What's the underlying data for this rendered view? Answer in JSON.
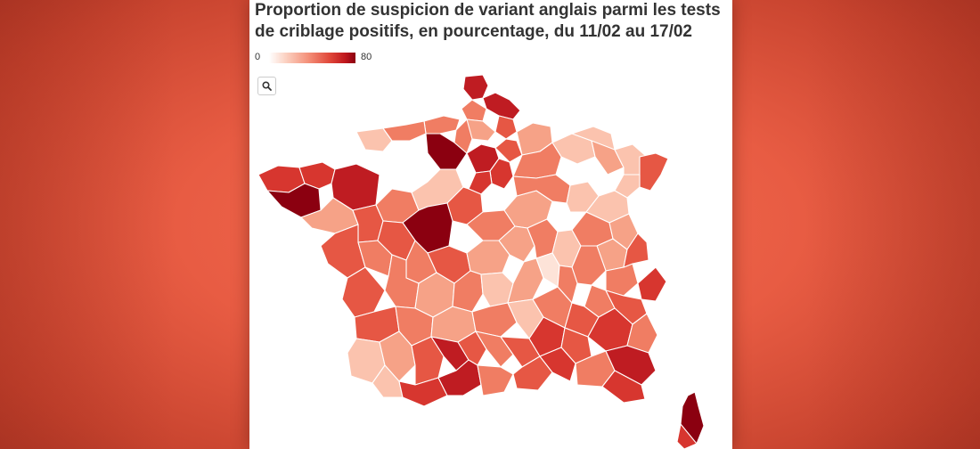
{
  "title": "Proportion de suspicion de variant anglais parmi les tests de criblage positifs, en pourcentage, du 11/02 au 17/02",
  "legend": {
    "min": "0",
    "max": "80"
  },
  "zoom_icon": "magnifier-icon",
  "colors": {
    "background": "#e85c43",
    "scale": [
      "#fde3d8",
      "#fbc3ae",
      "#f6a287",
      "#f07d63",
      "#e65744",
      "#d7362f",
      "#bf1c22",
      "#8b0010"
    ]
  }
}
